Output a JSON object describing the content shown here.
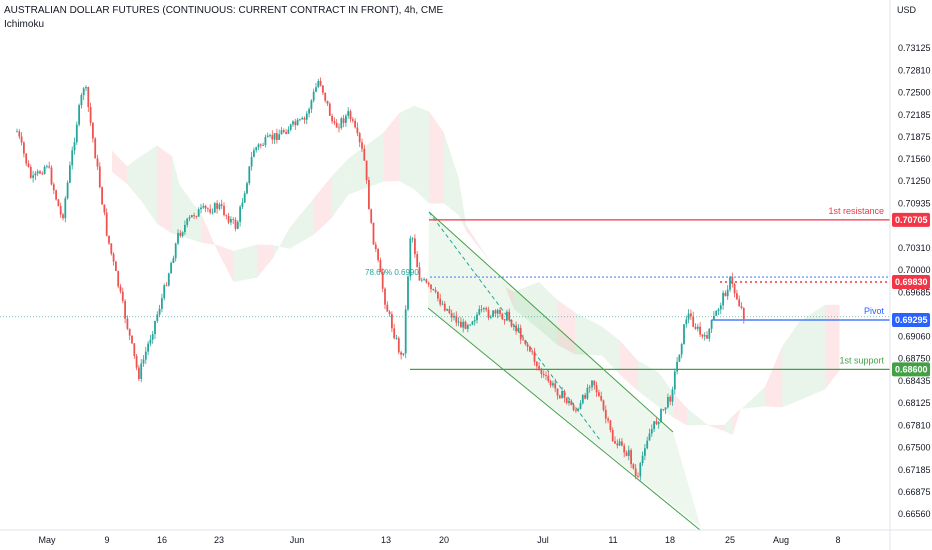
{
  "chart_data": {
    "type": "candlestick",
    "title": "AUSTRALIAN DOLLAR FUTURES (CONTINUOUS: CURRENT CONTRACT IN FRONT), 4h, CME",
    "indicator": "Ichimoku",
    "currency": "USD",
    "ylim": [
      0.6638,
      0.735
    ],
    "y_ticks": [
      "0.73125",
      "0.72810",
      "0.72500",
      "0.72185",
      "0.71875",
      "0.71560",
      "0.71250",
      "0.70935",
      "0.70310",
      "0.70000",
      "0.69685",
      "0.69060",
      "0.68750",
      "0.68435",
      "0.68125",
      "0.67810",
      "0.67500",
      "0.67185",
      "0.66875",
      "0.66560"
    ],
    "x_ticks": [
      "May",
      "9",
      "16",
      "23",
      "Jun",
      "13",
      "20",
      "Jul",
      "11",
      "18",
      "25",
      "Aug",
      "8"
    ],
    "levels": [
      {
        "label": "1st resistance",
        "value_label": "0.70705",
        "value": 0.70705,
        "color": "#f23645"
      },
      {
        "label": "",
        "value_label": "0.69830",
        "value": 0.6983,
        "color": "#f23645"
      },
      {
        "label": "Pivot",
        "value_label": "0.69295",
        "value": 0.69295,
        "color": "#2962ff"
      },
      {
        "label": "1st support",
        "value_label": "0.68600",
        "value": 0.686,
        "color": "#43a047"
      }
    ],
    "fib_label": "78.60% 0.6990",
    "fib_value": 0.699,
    "close_price": 0.6934,
    "price_path": [
      {
        "date": "Apr 27",
        "price": 0.7195
      },
      {
        "date": "Apr 29",
        "price": 0.7125
      },
      {
        "date": "May 1",
        "price": 0.715
      },
      {
        "date": "May 3",
        "price": 0.707
      },
      {
        "date": "May 5",
        "price": 0.721
      },
      {
        "date": "May 6",
        "price": 0.7265
      },
      {
        "date": "May 9",
        "price": 0.705
      },
      {
        "date": "May 11",
        "price": 0.695
      },
      {
        "date": "May 13",
        "price": 0.685
      },
      {
        "date": "May 16",
        "price": 0.696
      },
      {
        "date": "May 18",
        "price": 0.705
      },
      {
        "date": "May 20",
        "price": 0.708
      },
      {
        "date": "May 23",
        "price": 0.709
      },
      {
        "date": "May 25",
        "price": 0.706
      },
      {
        "date": "May 27",
        "price": 0.717
      },
      {
        "date": "May 31",
        "price": 0.72
      },
      {
        "date": "Jun 2",
        "price": 0.721
      },
      {
        "date": "Jun 4",
        "price": 0.727
      },
      {
        "date": "Jun 6",
        "price": 0.72
      },
      {
        "date": "Jun 8",
        "price": 0.722
      },
      {
        "date": "Jun 10",
        "price": 0.716
      },
      {
        "date": "Jun 11",
        "price": 0.706
      },
      {
        "date": "Jun 13",
        "price": 0.695
      },
      {
        "date": "Jun 15",
        "price": 0.687
      },
      {
        "date": "Jun 16",
        "price": 0.706
      },
      {
        "date": "Jun 17",
        "price": 0.699
      },
      {
        "date": "Jun 20",
        "price": 0.695
      },
      {
        "date": "Jun 22",
        "price": 0.692
      },
      {
        "date": "Jun 24",
        "price": 0.694
      },
      {
        "date": "Jun 27",
        "price": 0.6935
      },
      {
        "date": "Jun 29",
        "price": 0.69
      },
      {
        "date": "Jul 1",
        "price": 0.685
      },
      {
        "date": "Jul 4",
        "price": 0.682
      },
      {
        "date": "Jul 6",
        "price": 0.68
      },
      {
        "date": "Jul 8",
        "price": 0.685
      },
      {
        "date": "Jul 11",
        "price": 0.676
      },
      {
        "date": "Jul 13",
        "price": 0.674
      },
      {
        "date": "Jul 14",
        "price": 0.67
      },
      {
        "date": "Jul 15",
        "price": 0.676
      },
      {
        "date": "Jul 18",
        "price": 0.682
      },
      {
        "date": "Jul 20",
        "price": 0.694
      },
      {
        "date": "Jul 22",
        "price": 0.69
      },
      {
        "date": "Jul 25",
        "price": 0.6985
      },
      {
        "date": "Jul 27",
        "price": 0.6934
      }
    ]
  }
}
